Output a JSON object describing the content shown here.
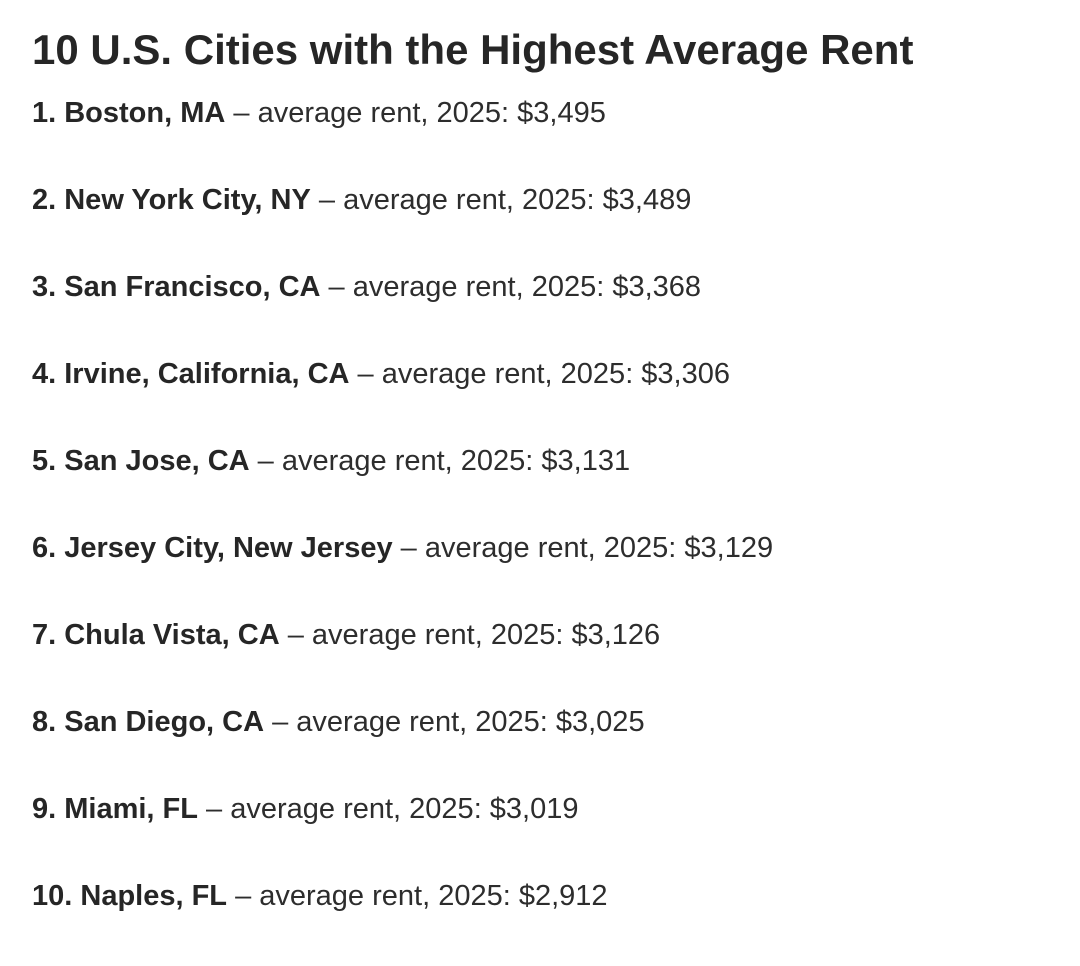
{
  "title": "10 U.S. Cities with the Highest Average Rent",
  "separator": " – ",
  "items": [
    {
      "rank_city": "1. Boston, MA",
      "desc": "average rent, 2025: $3,495"
    },
    {
      "rank_city": "2. New York City, NY",
      "desc": "average rent, 2025: $3,489"
    },
    {
      "rank_city": "3. San Francisco, CA",
      "desc": "average rent, 2025: $3,368"
    },
    {
      "rank_city": "4. Irvine, California, CA",
      "desc": "average rent, 2025: $3,306"
    },
    {
      "rank_city": "5. San Jose, CA",
      "desc": "average rent, 2025: $3,131"
    },
    {
      "rank_city": "6. Jersey City, New Jersey",
      "desc": "average rent, 2025: $3,129"
    },
    {
      "rank_city": "7. Chula Vista, CA",
      "desc": "average rent, 2025: $3,126"
    },
    {
      "rank_city": "8. San Diego, CA",
      "desc": "average rent, 2025: $3,025"
    },
    {
      "rank_city": "9. Miami, FL",
      "desc": "average rent, 2025: $3,019"
    },
    {
      "rank_city": "10. Naples, FL",
      "desc": "average rent, 2025: $2,912"
    }
  ]
}
